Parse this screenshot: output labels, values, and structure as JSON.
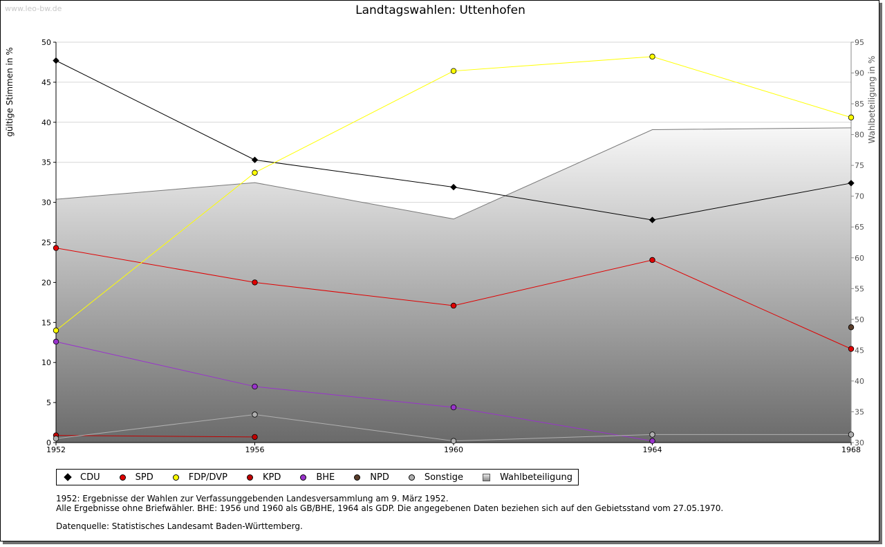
{
  "watermark": "www.leo-bw.de",
  "chart_data": {
    "type": "line",
    "title": "Landtagswahlen: Uttenhofen",
    "ylabel": "gültige Stimmen in %",
    "ylabel_right": "Wahlbeteiligung in %",
    "x": [
      "1952",
      "1956",
      "1960",
      "1964",
      "1968"
    ],
    "ylim": [
      0,
      50
    ],
    "yticks": [
      0,
      5,
      10,
      15,
      20,
      25,
      30,
      35,
      40,
      45,
      50
    ],
    "ylim_right": [
      30,
      95
    ],
    "yticks_right": [
      30,
      35,
      40,
      45,
      50,
      55,
      60,
      65,
      70,
      75,
      80,
      85,
      90,
      95
    ],
    "grid": true,
    "series": [
      {
        "name": "CDU",
        "color": "#000000",
        "values": [
          47.7,
          35.3,
          31.9,
          27.8,
          32.4
        ]
      },
      {
        "name": "SPD",
        "color": "#e00000",
        "values": [
          24.3,
          20.0,
          17.1,
          22.8,
          11.7
        ]
      },
      {
        "name": "FDP/DVP",
        "color": "#ffff00",
        "values": [
          14.0,
          33.7,
          46.4,
          48.2,
          40.6
        ]
      },
      {
        "name": "KPD",
        "color": "#c00000",
        "values": [
          0.9,
          0.7,
          null,
          null,
          null
        ]
      },
      {
        "name": "BHE",
        "color": "#9933cc",
        "values": [
          12.6,
          7.0,
          4.4,
          0.2,
          null
        ]
      },
      {
        "name": "NPD",
        "color": "#5a3e2b",
        "values": [
          null,
          null,
          null,
          null,
          14.4
        ]
      },
      {
        "name": "Sonstige",
        "color": "#b0b0b0",
        "values": [
          0.5,
          3.5,
          0.2,
          1.0,
          1.0
        ]
      }
    ],
    "turnout": {
      "name": "Wahlbeteiligung",
      "values": [
        69.5,
        72.2,
        66.3,
        80.8,
        81.1
      ]
    }
  },
  "notes": {
    "line1": "1952: Ergebnisse der Wahlen zur Verfassunggebenden Landesversammlung am 9. März 1952.",
    "line2": "Alle Ergebnisse ohne Briefwähler. BHE: 1956 und 1960 als GB/BHE, 1964 als GDP. Die angegebenen Daten beziehen sich auf den Gebietsstand vom 27.05.1970.",
    "source": "Datenquelle: Statistisches Landesamt Baden-Württemberg."
  }
}
